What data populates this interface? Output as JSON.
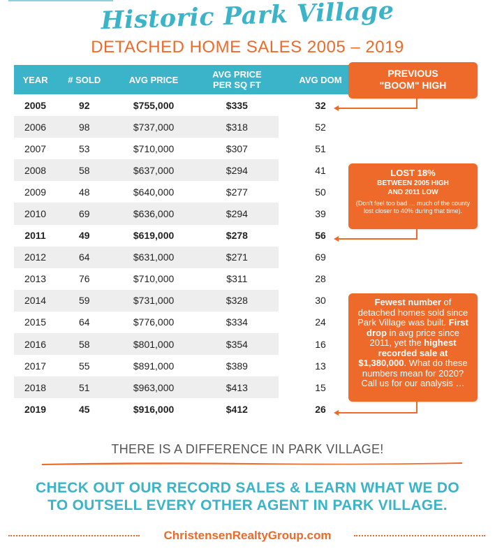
{
  "header": {
    "script_title": "Historic Park Village",
    "subtitle": "DETACHED HOME SALES 2005 – 2019"
  },
  "table": {
    "columns": [
      "YEAR",
      "# SOLD",
      "AVG PRICE",
      "AVG PRICE\nPER SQ FT",
      "AVG DOM"
    ],
    "rows": [
      {
        "year": "2005",
        "sold": "92",
        "avg_price": "$755,000",
        "sqft": "$335",
        "dom": "32",
        "bold": true
      },
      {
        "year": "2006",
        "sold": "98",
        "avg_price": "$737,000",
        "sqft": "$318",
        "dom": "52",
        "bold": false
      },
      {
        "year": "2007",
        "sold": "53",
        "avg_price": "$710,000",
        "sqft": "$307",
        "dom": "51",
        "bold": false
      },
      {
        "year": "2008",
        "sold": "58",
        "avg_price": "$637,000",
        "sqft": "$294",
        "dom": "41",
        "bold": false
      },
      {
        "year": "2009",
        "sold": "48",
        "avg_price": "$640,000",
        "sqft": "$277",
        "dom": "50",
        "bold": false
      },
      {
        "year": "2010",
        "sold": "69",
        "avg_price": "$636,000",
        "sqft": "$294",
        "dom": "39",
        "bold": false
      },
      {
        "year": "2011",
        "sold": "49",
        "avg_price": "$619,000",
        "sqft": "$278",
        "dom": "56",
        "bold": true
      },
      {
        "year": "2012",
        "sold": "64",
        "avg_price": "$631,000",
        "sqft": "$271",
        "dom": "69",
        "bold": false
      },
      {
        "year": "2013",
        "sold": "76",
        "avg_price": "$710,000",
        "sqft": "$311",
        "dom": "28",
        "bold": false
      },
      {
        "year": "2014",
        "sold": "59",
        "avg_price": "$731,000",
        "sqft": "$328",
        "dom": "30",
        "bold": false
      },
      {
        "year": "2015",
        "sold": "64",
        "avg_price": "$776,000",
        "sqft": "$334",
        "dom": "24",
        "bold": false
      },
      {
        "year": "2016",
        "sold": "58",
        "avg_price": "$801,000",
        "sqft": "$354",
        "dom": "16",
        "bold": false
      },
      {
        "year": "2017",
        "sold": "55",
        "avg_price": "$891,000",
        "sqft": "$389",
        "dom": "13",
        "bold": false
      },
      {
        "year": "2018",
        "sold": "51",
        "avg_price": "$963,000",
        "sqft": "$413",
        "dom": "15",
        "bold": false
      },
      {
        "year": "2019",
        "sold": "45",
        "avg_price": "$916,000",
        "sqft": "$412",
        "dom": "26",
        "bold": true
      }
    ]
  },
  "callouts": {
    "boom": {
      "line1": "PREVIOUS",
      "line2": "\"BOOM\" HIGH"
    },
    "lost": {
      "title": "LOST 18%",
      "line1": "BETWEEN 2005 HIGH",
      "line2": "AND 2011 LOW",
      "note": "(Don't feel too bad … much of the county lost closer to 40% during that time)."
    },
    "fewest": {
      "b1": "Fewest number",
      "t1": " of detached homes sold since Park Village was built. ",
      "b2": "First drop",
      "t2": " in avg price since 2011, yet the ",
      "b3": "highest recorded sale at $1,380,000",
      "t3": ". What do these numbers mean for 2020? Call us for our analysis …"
    }
  },
  "footer": {
    "difference": "THERE IS A DIFFERENCE IN PARK VILLAGE!",
    "cta_line1": "CHECK OUT OUR RECORD SALES & LEARN WHAT WE DO",
    "cta_line2": "TO OUTSELL EVERY OTHER AGENT IN PARK VILLAGE.",
    "website": "ChristensenRealtyGroup.com"
  },
  "colors": {
    "teal": "#3bb3c8",
    "orange": "#ee6a2a",
    "stripe": "#eeeeee"
  }
}
